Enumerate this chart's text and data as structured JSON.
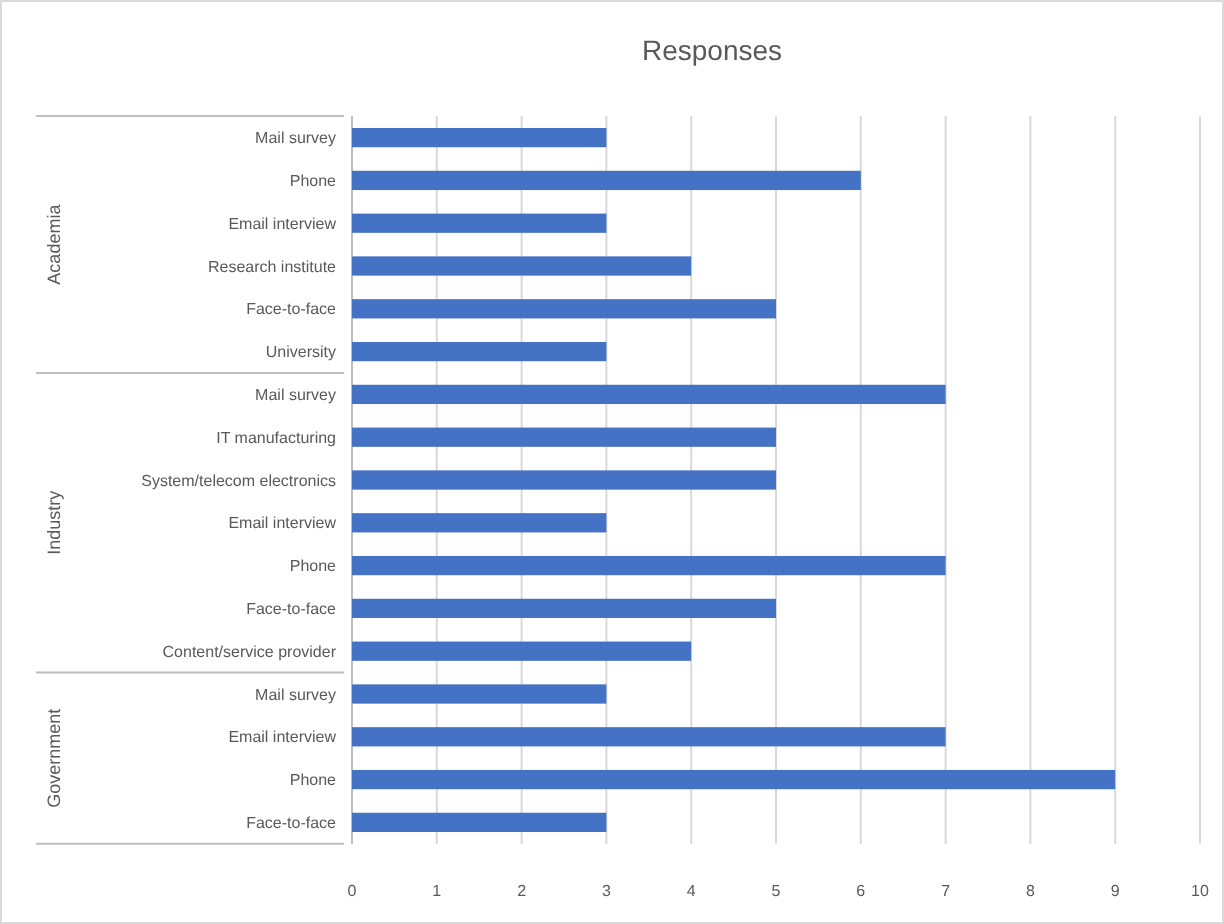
{
  "chart_data": {
    "type": "bar",
    "orientation": "horizontal",
    "title": "Responses",
    "categories": [
      "Mail survey",
      "Phone",
      "Email interview",
      "Research institute",
      "Face-to-face",
      "University",
      "Mail survey",
      "IT manufacturing",
      "System/telecom electronics",
      "Email interview",
      "Phone",
      "Face-to-face",
      "Content/service provider",
      "Mail survey",
      "Email interview",
      "Phone",
      "Face-to-face"
    ],
    "values": [
      3,
      6,
      3,
      4,
      5,
      3,
      7,
      5,
      5,
      3,
      7,
      5,
      4,
      3,
      7,
      9,
      3
    ],
    "color": "#4472c4",
    "xlim": [
      0,
      10
    ],
    "xticks": [
      0,
      1,
      2,
      3,
      4,
      5,
      6,
      7,
      8,
      9,
      10
    ],
    "grid": "x",
    "annotations": [
      "Academia",
      "Industry",
      "Government"
    ]
  }
}
